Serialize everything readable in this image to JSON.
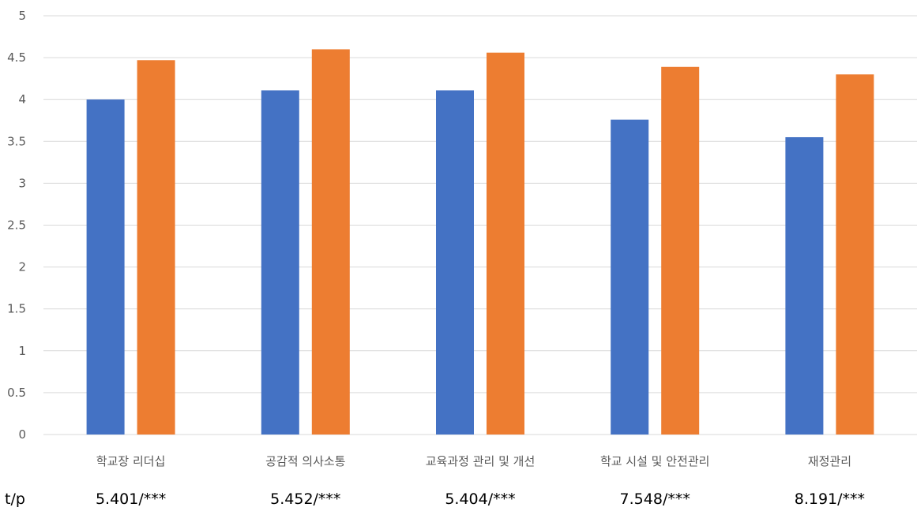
{
  "chart_data": {
    "type": "bar",
    "categories": [
      "학교장 리더십",
      "공감적 의사소통",
      "교육과정 관리 및 개선",
      "학교 시설 및 안전관리",
      "재정관리"
    ],
    "series": [
      {
        "values": [
          4.0,
          4.11,
          4.11,
          3.76,
          3.55
        ],
        "color": "#4472C4"
      },
      {
        "values": [
          4.47,
          4.6,
          4.56,
          4.39,
          4.3
        ],
        "color": "#ED7D31"
      }
    ],
    "ylim": [
      0,
      5
    ],
    "yticks": [
      "0",
      "0.5",
      "1",
      "1.5",
      "2",
      "2.5",
      "3",
      "3.5",
      "4",
      "4.5",
      "5"
    ],
    "grid": true,
    "stat_label": "t/p",
    "stats": [
      "5.401/***",
      "5.452/***",
      "5.404/***",
      "7.548/***",
      "8.191/***"
    ]
  }
}
